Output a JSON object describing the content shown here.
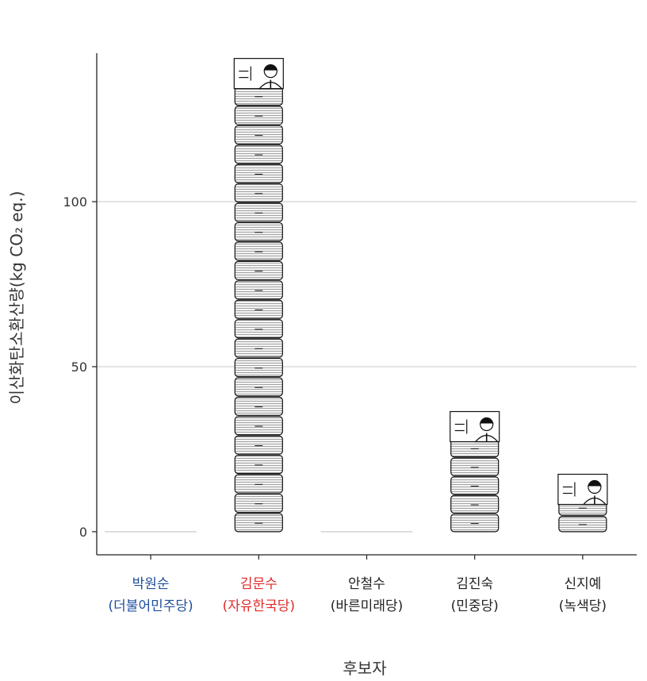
{
  "chart_data": {
    "type": "bar",
    "xlabel": "후보자",
    "ylabel": "이산화탄소환산량(kg CO₂ eq.)",
    "ylim": [
      -7,
      145
    ],
    "yticks": [
      0,
      50,
      100
    ],
    "grid": true,
    "categories": [
      {
        "name": "박원순",
        "party": "(더불어민주당)",
        "color": "#1f4e9c"
      },
      {
        "name": "김문수",
        "party": "(자유한국당)",
        "color": "#e02a2a"
      },
      {
        "name": "안철수",
        "party": "(바른미래당)",
        "color": "#222222"
      },
      {
        "name": "김진숙",
        "party": "(민중당)",
        "color": "#222222"
      },
      {
        "name": "신지예",
        "party": "(녹색당)",
        "color": "#222222"
      }
    ],
    "values": [
      0,
      141,
      0,
      34,
      15
    ]
  }
}
